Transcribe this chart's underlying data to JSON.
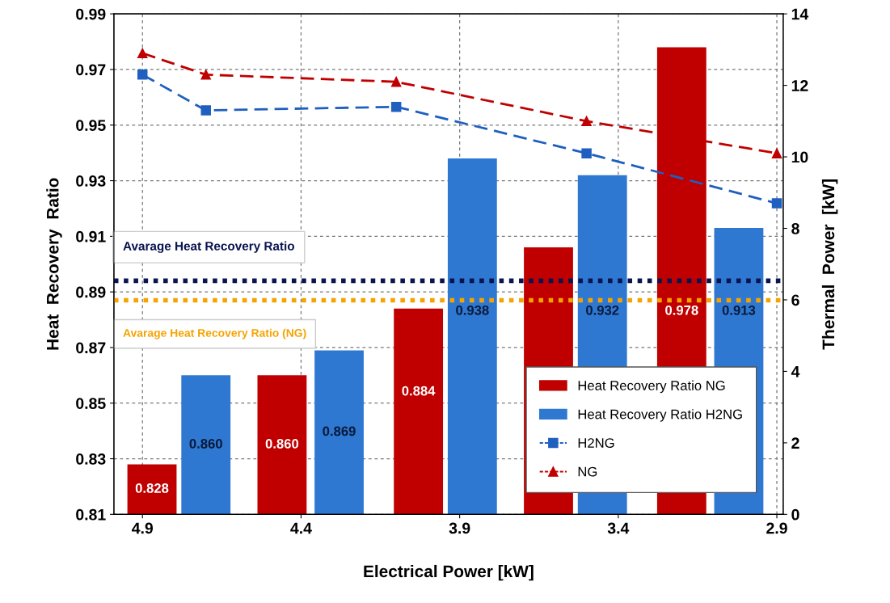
{
  "chart_data": {
    "type": "bar",
    "xlabel": "Electrical Power [kW]",
    "ylabel": "Heat  Recovery  Ratio",
    "y2label": "Thermal  Power  [kW]",
    "xlim": [
      4.99,
      2.88
    ],
    "xticks": [
      4.9,
      4.4,
      3.9,
      3.4,
      2.9
    ],
    "ylim": [
      0.81,
      0.99
    ],
    "yticks": [
      0.81,
      0.83,
      0.85,
      0.87,
      0.89,
      0.91,
      0.93,
      0.95,
      0.97,
      0.99
    ],
    "y2lim": [
      0,
      14
    ],
    "y2ticks": [
      0,
      2,
      4,
      6,
      8,
      10,
      12,
      14
    ],
    "grid": true,
    "legend": "bottom right",
    "series": [
      {
        "name": "Heat Recovery Ratio NG",
        "color": "#c00000",
        "x": [
          4.87,
          4.46,
          4.03,
          3.62,
          3.2
        ],
        "values": [
          0.828,
          0.86,
          0.884,
          0.906,
          0.978
        ],
        "value_labels": [
          "0.828",
          "0.860",
          "0.884",
          null,
          "0.978"
        ]
      },
      {
        "name": "Heat Recovery Ratio H2NG",
        "color": "#2e78d2",
        "x": [
          4.7,
          4.28,
          3.86,
          3.45,
          3.02
        ],
        "values": [
          0.86,
          0.869,
          0.938,
          0.932,
          0.913
        ],
        "value_labels": [
          "0.860",
          "0.869",
          "0.938",
          "0.932",
          "0.913"
        ]
      },
      {
        "name": "H2NG",
        "type": "line",
        "axis": "y2",
        "color": "#1f5fc0",
        "marker": "square",
        "line_style": "dashed",
        "x": [
          4.9,
          4.7,
          4.1,
          3.5,
          2.9
        ],
        "values": [
          12.3,
          11.3,
          11.4,
          10.1,
          8.7
        ]
      },
      {
        "name": "NG",
        "type": "line",
        "axis": "y2",
        "color": "#c00000",
        "marker": "triangle",
        "line_style": "dashed",
        "x": [
          4.9,
          4.7,
          4.1,
          3.5,
          2.9
        ],
        "values": [
          12.9,
          12.3,
          12.1,
          11.0,
          10.1
        ]
      }
    ],
    "ref_lines": [
      {
        "axis": "y",
        "value": 0.894,
        "label": "Avarage Heat Recovery Ratio",
        "color": "#0a1450",
        "line_style": "dotted"
      },
      {
        "axis": "y",
        "value": 0.887,
        "label": "Avarage Heat Recovery Ratio (NG)",
        "color": "#f5a300",
        "line_style": "dotted"
      }
    ]
  }
}
